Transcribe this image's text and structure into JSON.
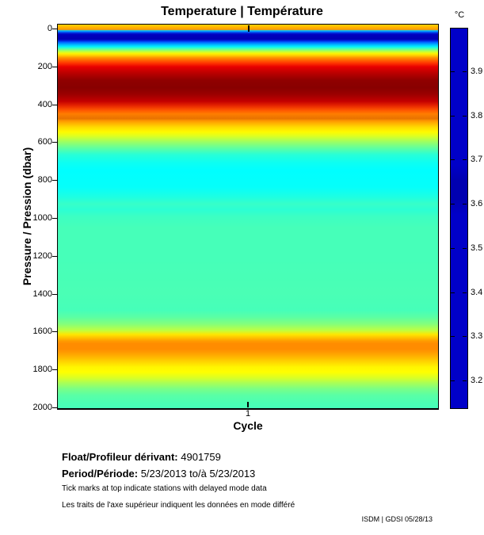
{
  "title": "Temperature | Température",
  "plot": {
    "xlabel": "Cycle",
    "ylabel": "Pressure / Pression (dbar)",
    "x_ticks": [
      "1"
    ],
    "y_ticks": [
      "0",
      "200",
      "400",
      "600",
      "800",
      "1000",
      "1200",
      "1400",
      "1600",
      "1800",
      "2000"
    ]
  },
  "colorbar": {
    "unit_label": "°C",
    "tick_labels": [
      "3.9",
      "3.8",
      "3.7",
      "3.6",
      "3.5",
      "3.4",
      "3.3",
      "3.2"
    ],
    "bar_color": "#0000c8",
    "bar_color_variant": "#0000b0"
  },
  "footer": {
    "float_label": "Float/Profileur dérivant:",
    "float_value": "4901759",
    "period_label": "Period/Période:",
    "period_value": "5/23/2013  to/à  5/23/2013",
    "note_en": "Tick marks at top indicate stations with delayed mode data",
    "note_fr": "Les traits de l'axe supérieur indiquent les données en mode différé",
    "credit": "ISDM | GDSI  05/28/13"
  },
  "chart_data": {
    "type": "heatmap",
    "title": "Temperature | Température",
    "xlabel": "Cycle",
    "ylabel": "Pressure / Pression (dbar)",
    "x": [
      1
    ],
    "x_tick_labels": [
      "1"
    ],
    "ylim": [
      0,
      2000
    ],
    "y_tick_values": [
      0,
      200,
      400,
      600,
      800,
      1000,
      1200,
      1400,
      1600,
      1800,
      2000
    ],
    "legend_position": "right-colorbar",
    "grid": false,
    "colorbar": {
      "label": "°C",
      "tick_values": [
        3.9,
        3.8,
        3.7,
        3.6,
        3.5,
        3.4,
        3.3,
        3.2
      ],
      "value_range_estimate": [
        3.13,
        4.0
      ],
      "rendered_as_solid_color": "#0000c8"
    },
    "delayed_mode_station_ticks_x": [
      1
    ],
    "float_id": "4901759",
    "period": {
      "start": "5/23/2013",
      "end": "5/23/2013"
    },
    "profile_estimate": {
      "pressure_dbar": [
        0,
        8,
        20,
        35,
        50,
        65,
        80,
        95,
        110,
        130,
        150,
        175,
        210,
        250,
        300,
        340,
        380,
        420,
        470,
        530,
        580,
        640,
        730,
        830,
        930,
        1050,
        1250,
        1450,
        1550,
        1610,
        1655,
        1700,
        1760,
        1800,
        1870,
        1950,
        2000
      ],
      "temperature_c": [
        3.74,
        3.32,
        3.17,
        3.16,
        3.22,
        3.38,
        3.5,
        3.55,
        3.6,
        3.66,
        3.72,
        3.8,
        3.92,
        3.97,
        3.95,
        3.9,
        3.84,
        3.79,
        3.74,
        3.67,
        3.61,
        3.55,
        3.5,
        3.49,
        3.52,
        3.5,
        3.51,
        3.52,
        3.56,
        3.66,
        3.77,
        3.7,
        3.66,
        3.62,
        3.56,
        3.52,
        3.51
      ]
    },
    "gradient_stops": [
      [
        0.0,
        "#ffd200"
      ],
      [
        0.01,
        "#ffa800"
      ],
      [
        0.013,
        "#ff9600"
      ],
      [
        0.016,
        "#00c3ff"
      ],
      [
        0.019,
        "#0072ff"
      ],
      [
        0.022,
        "#0028dc"
      ],
      [
        0.026,
        "#0000be"
      ],
      [
        0.038,
        "#0000b4"
      ],
      [
        0.042,
        "#0022e0"
      ],
      [
        0.046,
        "#0064ff"
      ],
      [
        0.052,
        "#00b4ff"
      ],
      [
        0.057,
        "#00ecff"
      ],
      [
        0.061,
        "#30ffcf"
      ],
      [
        0.066,
        "#80ff7f"
      ],
      [
        0.071,
        "#c8ff37"
      ],
      [
        0.076,
        "#fff000"
      ],
      [
        0.081,
        "#ffc800"
      ],
      [
        0.086,
        "#ff9600"
      ],
      [
        0.093,
        "#ff6400"
      ],
      [
        0.101,
        "#ff3200"
      ],
      [
        0.11,
        "#e80000"
      ],
      [
        0.124,
        "#c00000"
      ],
      [
        0.145,
        "#900000"
      ],
      [
        0.165,
        "#880000"
      ],
      [
        0.182,
        "#9c0000"
      ],
      [
        0.2,
        "#c40000"
      ],
      [
        0.212,
        "#e82800"
      ],
      [
        0.224,
        "#ff5a00"
      ],
      [
        0.233,
        "#ff7d00"
      ],
      [
        0.24,
        "#f07800"
      ],
      [
        0.245,
        "#e87200"
      ],
      [
        0.251,
        "#ff9600"
      ],
      [
        0.258,
        "#ffb400"
      ],
      [
        0.268,
        "#ffdc00"
      ],
      [
        0.28,
        "#fffa00"
      ],
      [
        0.291,
        "#dcff23"
      ],
      [
        0.306,
        "#9bff64"
      ],
      [
        0.322,
        "#5fffa0"
      ],
      [
        0.339,
        "#28ffd7"
      ],
      [
        0.36,
        "#0dfff2"
      ],
      [
        0.38,
        "#00ffff"
      ],
      [
        0.424,
        "#05fffa"
      ],
      [
        0.45,
        "#1effe1"
      ],
      [
        0.467,
        "#37ffc8"
      ],
      [
        0.483,
        "#2cffd3"
      ],
      [
        0.5,
        "#3cffc3"
      ],
      [
        0.53,
        "#46ffb9"
      ],
      [
        0.61,
        "#46ffb9"
      ],
      [
        0.7,
        "#4affb5"
      ],
      [
        0.745,
        "#46ffb9"
      ],
      [
        0.762,
        "#5affa5"
      ],
      [
        0.78,
        "#82ff7d"
      ],
      [
        0.797,
        "#beff41"
      ],
      [
        0.808,
        "#ffe600"
      ],
      [
        0.816,
        "#ffc300"
      ],
      [
        0.825,
        "#ff9b00"
      ],
      [
        0.832,
        "#ff8c00"
      ],
      [
        0.846,
        "#ff8c00"
      ],
      [
        0.856,
        "#ff9e00"
      ],
      [
        0.868,
        "#ffb900"
      ],
      [
        0.88,
        "#ffd700"
      ],
      [
        0.893,
        "#fff500"
      ],
      [
        0.906,
        "#ffff00"
      ],
      [
        0.92,
        "#dcff23"
      ],
      [
        0.934,
        "#aaff55"
      ],
      [
        0.95,
        "#78ff87"
      ],
      [
        0.966,
        "#5affa5"
      ],
      [
        0.985,
        "#4cffb3"
      ],
      [
        1.0,
        "#46ffb9"
      ]
    ]
  }
}
